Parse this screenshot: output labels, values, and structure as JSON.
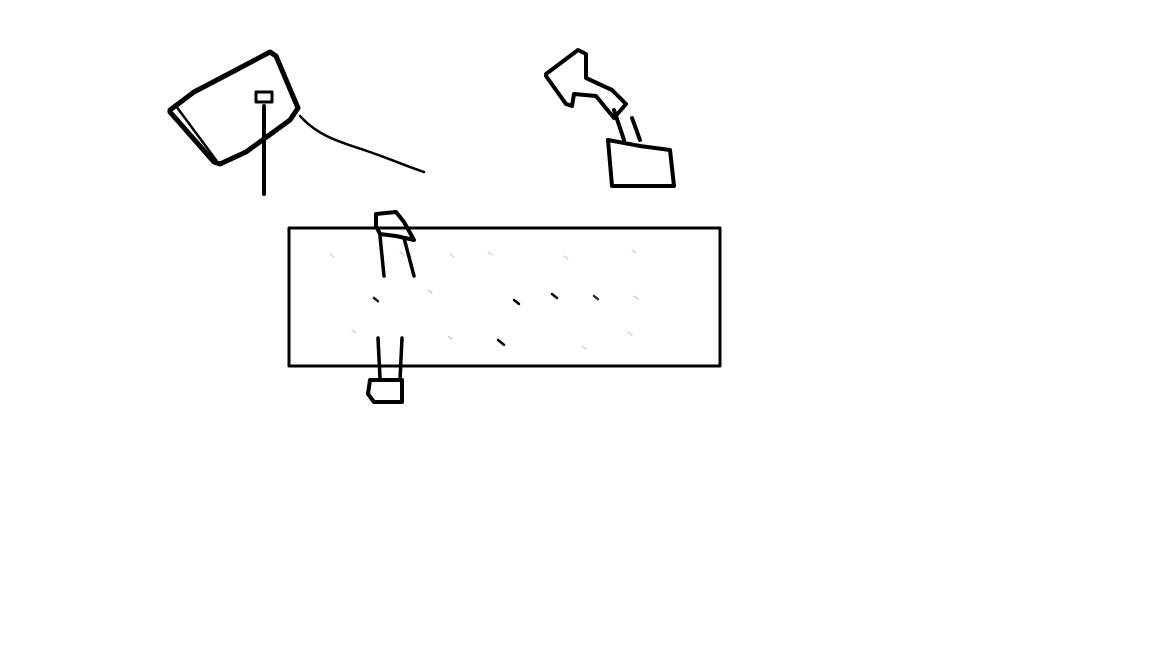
{
  "canvas": {
    "background_color": "#ffffff",
    "ink_color": "#000000",
    "speckle_color": "#888888"
  },
  "sketch": {
    "elements": [
      "left-tilted-box-sketch",
      "right-arrow-sketch",
      "right-box-sketch",
      "center-rectangle",
      "vertical-bar-sketch"
    ]
  }
}
